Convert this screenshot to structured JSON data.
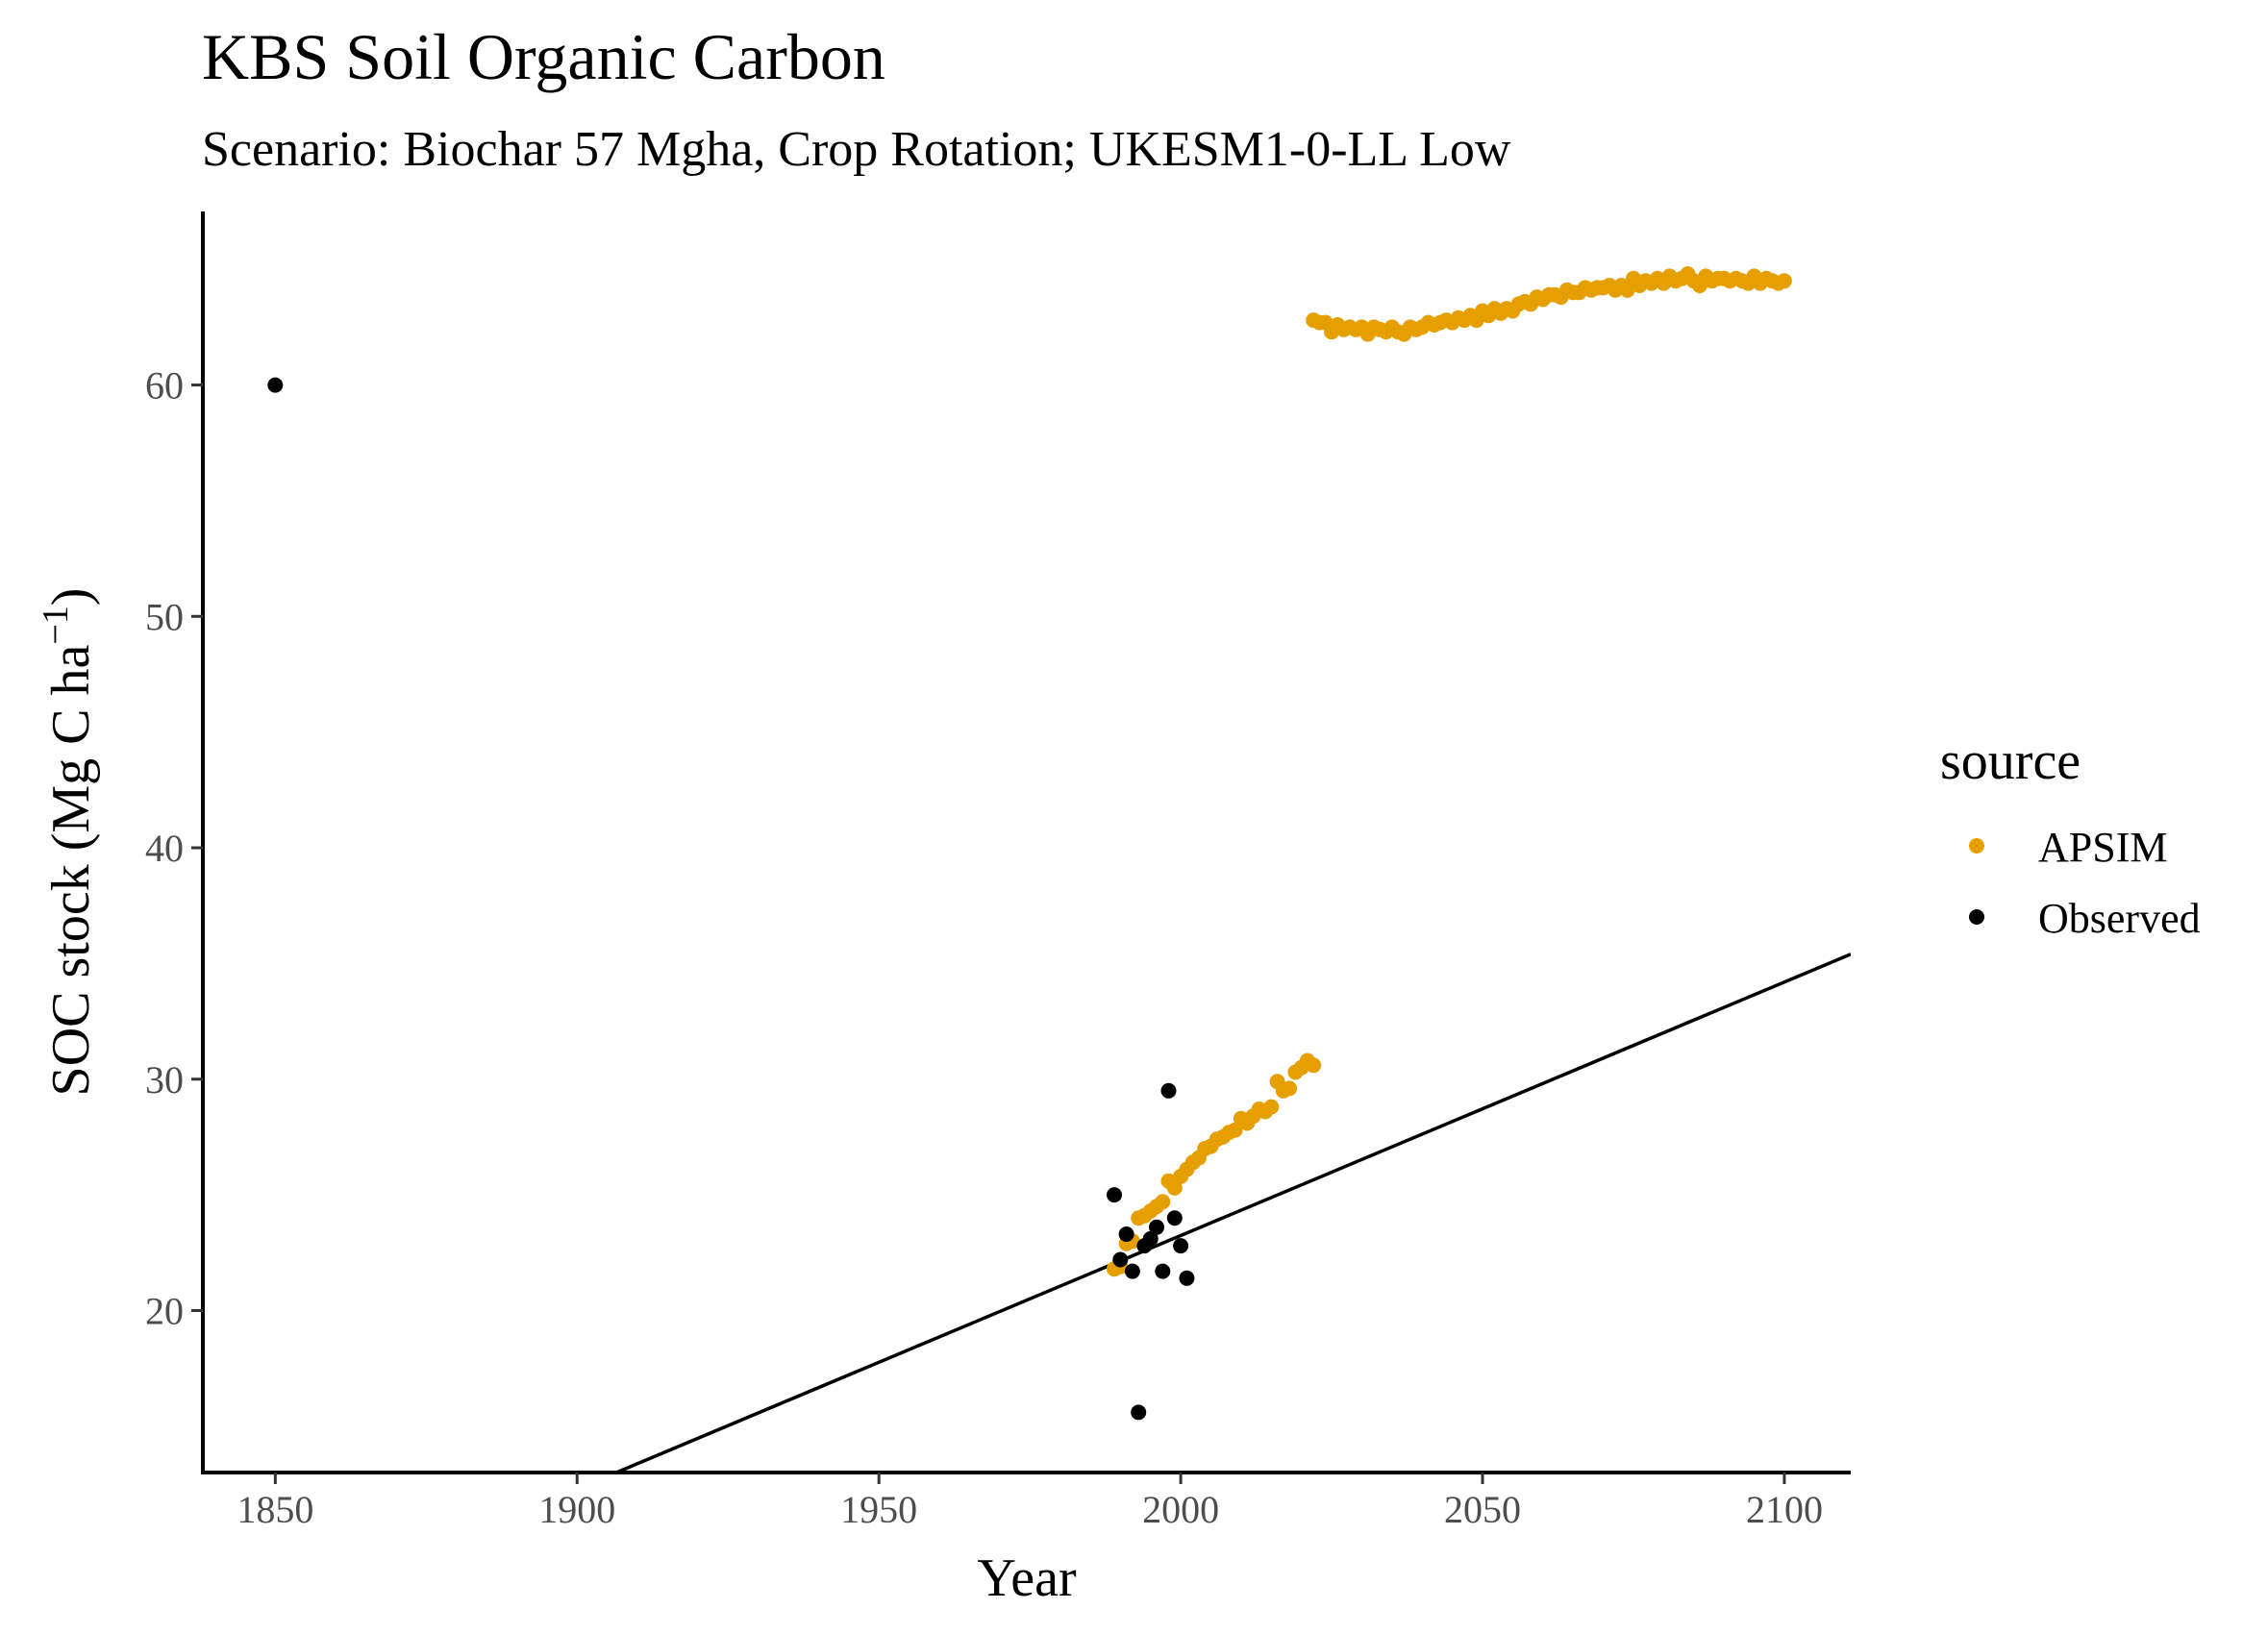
{
  "chart_data": {
    "type": "scatter",
    "title": "KBS Soil Organic Carbon",
    "subtitle": "Scenario: Biochar 57 Mgha, Crop Rotation; UKESM1-0-LL Low",
    "xlabel": "Year",
    "ylabel_main": "SOC stock (Mg C ha",
    "ylabel_sup": "−1",
    "ylabel_close": ")",
    "xlim": [
      1838,
      2111
    ],
    "ylim": [
      13,
      67.5
    ],
    "x_ticks": [
      1850,
      1900,
      1950,
      2000,
      2050,
      2100
    ],
    "y_ticks": [
      20,
      30,
      40,
      50,
      60
    ],
    "grid": false,
    "legend": {
      "title": "source",
      "placement": "right",
      "entries": [
        {
          "label": "APSIM",
          "color": "#E69F00"
        },
        {
          "label": "Observed",
          "color": "#000000"
        }
      ]
    },
    "series": [
      {
        "name": "APSIM",
        "color": "#E69F00",
        "points": [
          [
            1989,
            21.8
          ],
          [
            1990,
            21.9
          ],
          [
            1991,
            22.9
          ],
          [
            1992,
            23.0
          ],
          [
            1993,
            24.0
          ],
          [
            1994,
            24.1
          ],
          [
            1995,
            24.3
          ],
          [
            1996,
            24.5
          ],
          [
            1997,
            24.7
          ],
          [
            1998,
            25.6
          ],
          [
            1999,
            25.3
          ],
          [
            2000,
            25.8
          ],
          [
            2001,
            26.1
          ],
          [
            2002,
            26.4
          ],
          [
            2003,
            26.6
          ],
          [
            2004,
            27.0
          ],
          [
            2005,
            27.1
          ],
          [
            2006,
            27.4
          ],
          [
            2007,
            27.5
          ],
          [
            2008,
            27.7
          ],
          [
            2009,
            27.8
          ],
          [
            2010,
            28.3
          ],
          [
            2011,
            28.1
          ],
          [
            2012,
            28.4
          ],
          [
            2013,
            28.7
          ],
          [
            2014,
            28.6
          ],
          [
            2015,
            28.8
          ],
          [
            2016,
            29.9
          ],
          [
            2017,
            29.5
          ],
          [
            2018,
            29.6
          ],
          [
            2019,
            30.3
          ],
          [
            2020,
            30.5
          ],
          [
            2021,
            30.8
          ],
          [
            2022,
            30.6
          ],
          [
            2022,
            62.8
          ],
          [
            2023,
            62.7
          ],
          [
            2024,
            62.7
          ],
          [
            2025,
            62.3
          ],
          [
            2026,
            62.6
          ],
          [
            2027,
            62.4
          ],
          [
            2028,
            62.5
          ],
          [
            2029,
            62.4
          ],
          [
            2030,
            62.5
          ],
          [
            2031,
            62.2
          ],
          [
            2032,
            62.5
          ],
          [
            2033,
            62.4
          ],
          [
            2034,
            62.3
          ],
          [
            2035,
            62.5
          ],
          [
            2036,
            62.3
          ],
          [
            2037,
            62.2
          ],
          [
            2038,
            62.5
          ],
          [
            2039,
            62.4
          ],
          [
            2040,
            62.5
          ],
          [
            2041,
            62.7
          ],
          [
            2042,
            62.6
          ],
          [
            2043,
            62.7
          ],
          [
            2044,
            62.8
          ],
          [
            2045,
            62.7
          ],
          [
            2046,
            62.9
          ],
          [
            2047,
            62.8
          ],
          [
            2048,
            63.0
          ],
          [
            2049,
            62.8
          ],
          [
            2050,
            63.2
          ],
          [
            2051,
            63.0
          ],
          [
            2052,
            63.3
          ],
          [
            2053,
            63.1
          ],
          [
            2054,
            63.3
          ],
          [
            2055,
            63.2
          ],
          [
            2056,
            63.5
          ],
          [
            2057,
            63.6
          ],
          [
            2058,
            63.5
          ],
          [
            2059,
            63.8
          ],
          [
            2060,
            63.7
          ],
          [
            2061,
            63.9
          ],
          [
            2062,
            63.9
          ],
          [
            2063,
            63.8
          ],
          [
            2064,
            64.1
          ],
          [
            2065,
            64.0
          ],
          [
            2066,
            64.0
          ],
          [
            2067,
            64.2
          ],
          [
            2068,
            64.1
          ],
          [
            2069,
            64.2
          ],
          [
            2070,
            64.2
          ],
          [
            2071,
            64.3
          ],
          [
            2072,
            64.1
          ],
          [
            2073,
            64.3
          ],
          [
            2074,
            64.1
          ],
          [
            2075,
            64.6
          ],
          [
            2076,
            64.3
          ],
          [
            2077,
            64.5
          ],
          [
            2078,
            64.4
          ],
          [
            2079,
            64.6
          ],
          [
            2080,
            64.4
          ],
          [
            2081,
            64.7
          ],
          [
            2082,
            64.5
          ],
          [
            2083,
            64.6
          ],
          [
            2084,
            64.8
          ],
          [
            2085,
            64.5
          ],
          [
            2086,
            64.3
          ],
          [
            2087,
            64.7
          ],
          [
            2088,
            64.5
          ],
          [
            2089,
            64.6
          ],
          [
            2090,
            64.6
          ],
          [
            2091,
            64.5
          ],
          [
            2092,
            64.6
          ],
          [
            2093,
            64.5
          ],
          [
            2094,
            64.4
          ],
          [
            2095,
            64.7
          ],
          [
            2096,
            64.4
          ],
          [
            2097,
            64.6
          ],
          [
            2098,
            64.5
          ],
          [
            2099,
            64.4
          ],
          [
            2100,
            64.5
          ]
        ]
      },
      {
        "name": "Observed",
        "color": "#000000",
        "points": [
          [
            1850,
            60.0
          ],
          [
            1989,
            25.0
          ],
          [
            1990,
            22.2
          ],
          [
            1991,
            23.3
          ],
          [
            1992,
            21.7
          ],
          [
            1993,
            15.6
          ],
          [
            1994,
            22.8
          ],
          [
            1995,
            23.1
          ],
          [
            1996,
            23.6
          ],
          [
            1997,
            21.7
          ],
          [
            1998,
            29.5
          ],
          [
            1999,
            24.0
          ],
          [
            2000,
            22.8
          ],
          [
            2001,
            21.4
          ]
        ]
      }
    ],
    "trend_line": {
      "x": [
        1906.5,
        2111
      ],
      "y": [
        13,
        35.4
      ]
    }
  }
}
